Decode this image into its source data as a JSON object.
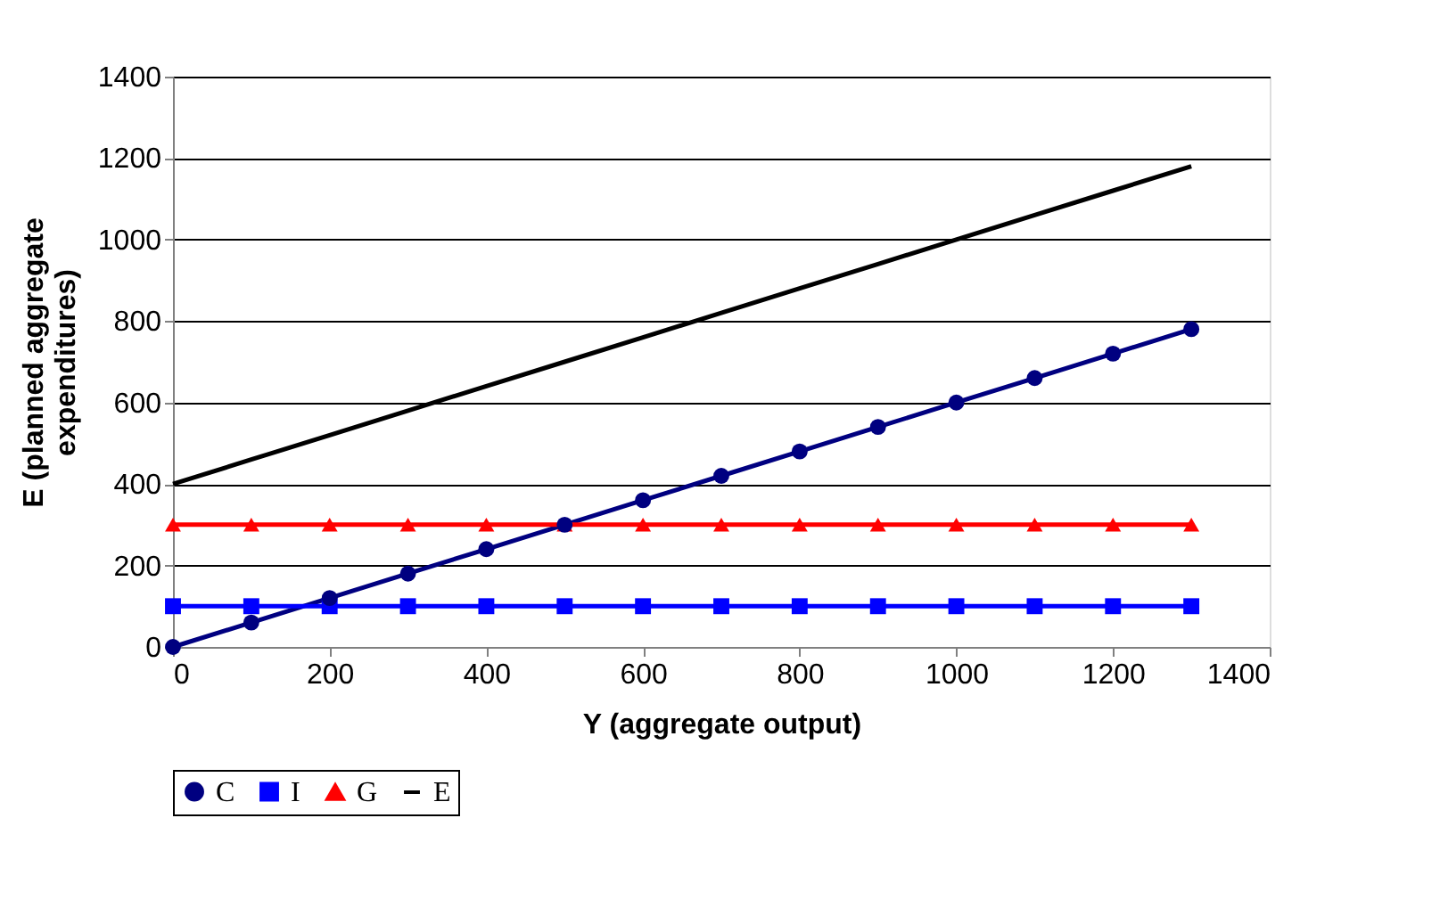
{
  "chart_data": {
    "type": "line",
    "xlabel": "Y (aggregate output)",
    "ylabel": "E (planned aggregate expenditures)",
    "x": [
      0,
      100,
      200,
      300,
      400,
      500,
      600,
      700,
      800,
      900,
      1000,
      1100,
      1200,
      1300
    ],
    "series": [
      {
        "name": "C",
        "color": "#000080",
        "marker": "circle",
        "values": [
          0,
          60,
          120,
          180,
          240,
          300,
          360,
          420,
          480,
          540,
          600,
          660,
          720,
          780
        ]
      },
      {
        "name": "I",
        "color": "#0000ff",
        "marker": "square",
        "values": [
          100,
          100,
          100,
          100,
          100,
          100,
          100,
          100,
          100,
          100,
          100,
          100,
          100,
          100
        ]
      },
      {
        "name": "G",
        "color": "#ff0000",
        "marker": "triangle",
        "values": [
          300,
          300,
          300,
          300,
          300,
          300,
          300,
          300,
          300,
          300,
          300,
          300,
          300,
          300
        ]
      },
      {
        "name": "E",
        "color": "#000000",
        "marker": "none",
        "values": [
          400,
          460,
          520,
          580,
          640,
          700,
          760,
          820,
          880,
          940,
          1000,
          1060,
          1120,
          1180
        ]
      }
    ],
    "xlim": [
      0,
      1400
    ],
    "xticks": [
      0,
      200,
      400,
      600,
      800,
      1000,
      1200,
      1400
    ],
    "ylim": [
      0,
      1400
    ],
    "yticks": [
      0,
      200,
      400,
      600,
      800,
      1000,
      1200,
      1400
    ],
    "grid": "y",
    "legend": "bottom"
  }
}
